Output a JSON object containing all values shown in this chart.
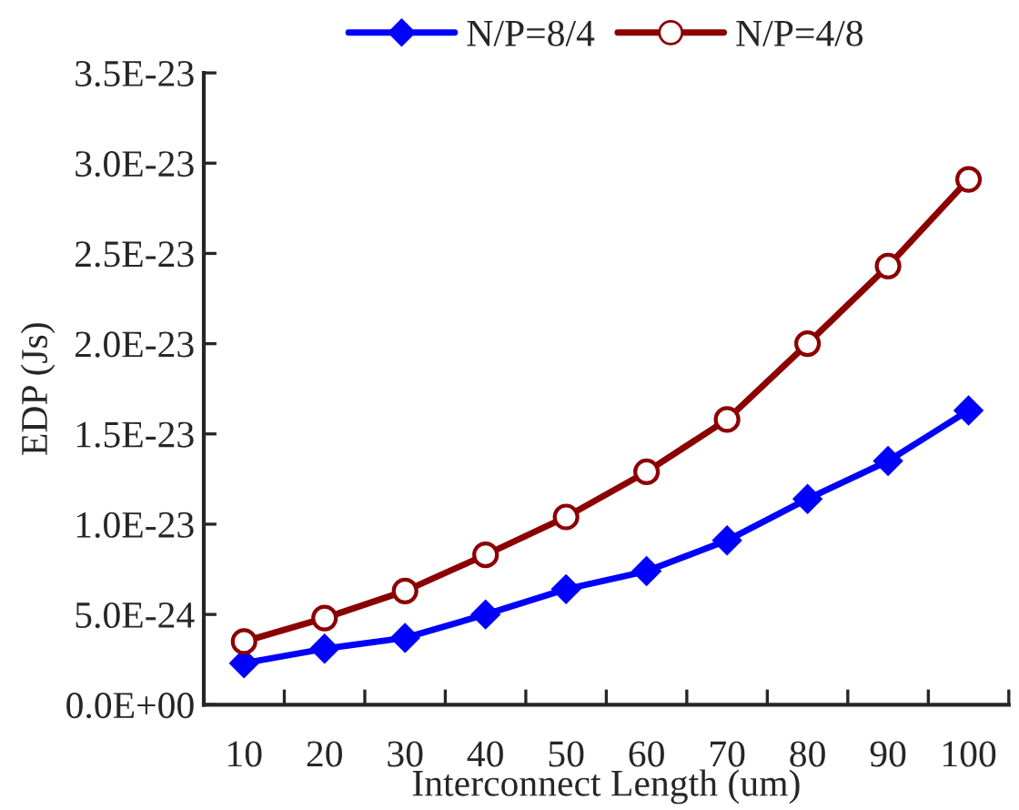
{
  "chart_data": {
    "type": "line",
    "xlabel": "Interconnect Length (um)",
    "ylabel": "EDP (Js)",
    "categories": [
      "10",
      "20",
      "30",
      "40",
      "50",
      "60",
      "70",
      "80",
      "90",
      "100"
    ],
    "series": [
      {
        "name": "N/P=8/4",
        "color": "#0000ff",
        "marker": "diamond",
        "values": [
          2.3e-24,
          3.1e-24,
          3.7e-24,
          5e-24,
          6.4e-24,
          7.4e-24,
          9.1e-24,
          1.14e-23,
          1.35e-23,
          1.63e-23
        ]
      },
      {
        "name": "N/P=4/8",
        "color": "#8b0000",
        "marker": "circle",
        "values": [
          3.5e-24,
          4.8e-24,
          6.3e-24,
          8.3e-24,
          1.04e-23,
          1.29e-23,
          1.58e-23,
          2e-23,
          2.43e-23,
          2.91e-23
        ]
      }
    ],
    "ylim": [
      0,
      3.5e-23
    ],
    "yticks": [
      {
        "value": 0,
        "label": "0.0E+00"
      },
      {
        "value": 5e-24,
        "label": "5.0E-24"
      },
      {
        "value": 1e-23,
        "label": "1.0E-23"
      },
      {
        "value": 1.5e-23,
        "label": "1.5E-23"
      },
      {
        "value": 2e-23,
        "label": "2.0E-23"
      },
      {
        "value": 2.5e-23,
        "label": "2.5E-23"
      },
      {
        "value": 3e-23,
        "label": "3.0E-23"
      },
      {
        "value": 3.5e-23,
        "label": "3.5E-23"
      }
    ],
    "grid": false,
    "legend": "top",
    "line_style": "solid"
  }
}
